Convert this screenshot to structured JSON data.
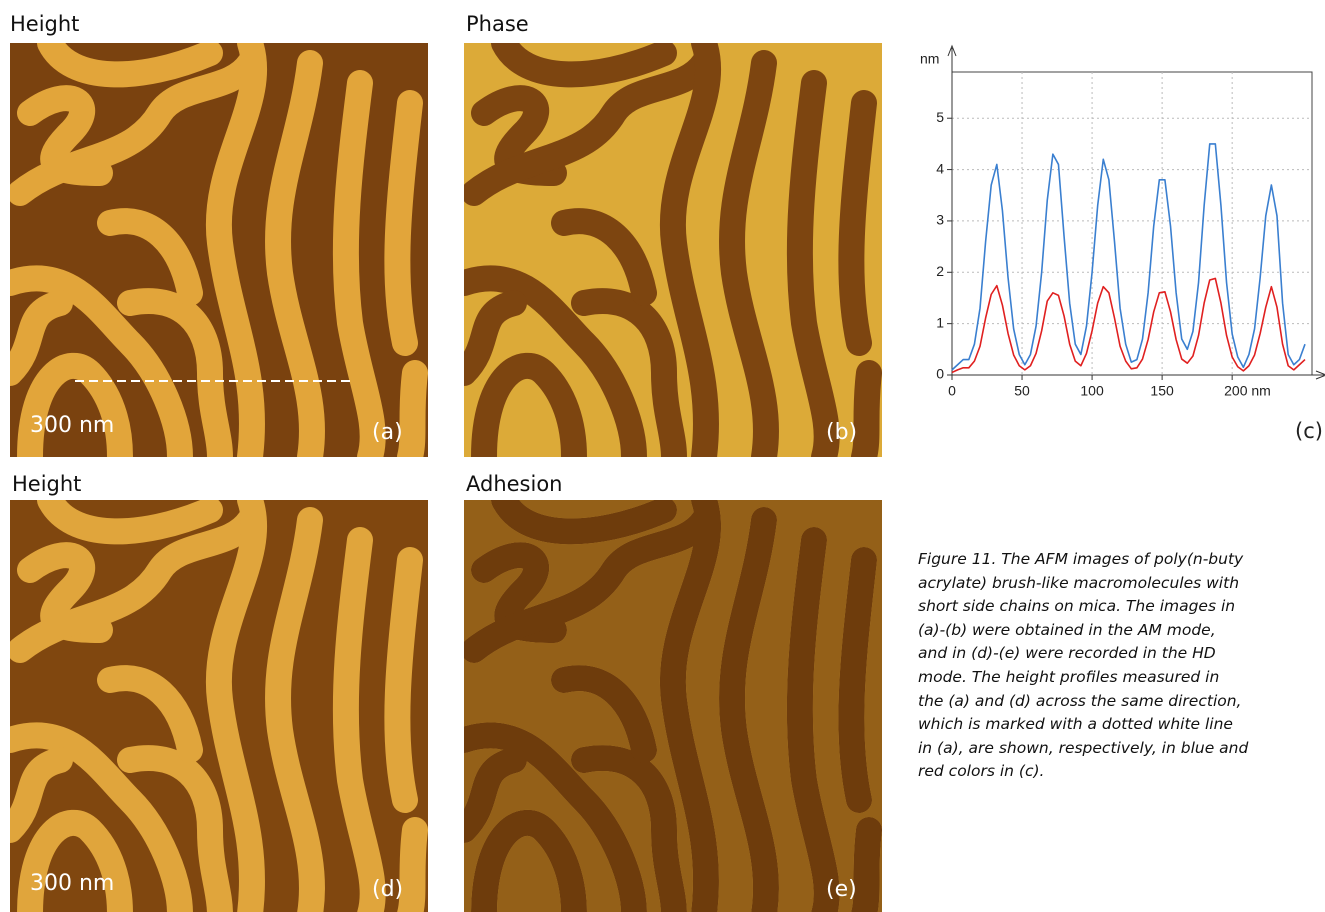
{
  "panels": [
    {
      "title": "Height",
      "scale": "300 nm",
      "letter": "(a)"
    },
    {
      "title": "Phase",
      "letter": "(b)"
    },
    {
      "title": "Height",
      "scale": "300 nm",
      "letter": "(d)"
    },
    {
      "title": "Adhesion",
      "letter": "(e)"
    }
  ],
  "chart_panel": "(c)",
  "chart_data": {
    "type": "line",
    "y_label": "nm",
    "x": [
      0,
      4,
      8,
      12,
      16,
      20,
      24,
      28,
      32,
      36,
      40,
      44,
      48,
      52,
      56,
      60,
      64,
      68,
      72,
      76,
      80,
      84,
      88,
      92,
      96,
      100,
      104,
      108,
      112,
      116,
      120,
      124,
      128,
      132,
      136,
      140,
      144,
      148,
      152,
      156,
      160,
      164,
      168,
      172,
      176,
      180,
      184,
      188,
      192,
      196,
      200,
      204,
      208,
      212,
      216,
      220,
      224,
      228,
      232,
      236,
      240,
      244,
      248,
      252
    ],
    "series": [
      {
        "color": "#3a7fd0",
        "values": [
          0.1,
          0.2,
          0.3,
          0.3,
          0.6,
          1.3,
          2.6,
          3.7,
          4.1,
          3.2,
          1.9,
          0.9,
          0.4,
          0.2,
          0.4,
          0.95,
          2.0,
          3.4,
          4.3,
          4.1,
          2.7,
          1.4,
          0.6,
          0.4,
          0.95,
          2.0,
          3.3,
          4.2,
          3.8,
          2.6,
          1.3,
          0.6,
          0.25,
          0.3,
          0.7,
          1.6,
          2.9,
          3.8,
          3.8,
          2.9,
          1.6,
          0.7,
          0.5,
          0.85,
          1.8,
          3.3,
          4.5,
          4.5,
          3.3,
          1.8,
          0.8,
          0.35,
          0.15,
          0.4,
          0.9,
          1.9,
          3.1,
          3.7,
          3.1,
          1.4,
          0.4,
          0.2,
          0.3,
          0.6
        ]
      },
      {
        "color": "#e02020",
        "values": [
          0.05,
          0.1,
          0.14,
          0.14,
          0.27,
          0.56,
          1.11,
          1.57,
          1.74,
          1.36,
          0.81,
          0.39,
          0.18,
          0.1,
          0.18,
          0.42,
          0.86,
          1.44,
          1.6,
          1.55,
          1.15,
          0.6,
          0.27,
          0.18,
          0.42,
          0.86,
          1.4,
          1.72,
          1.6,
          1.11,
          0.56,
          0.27,
          0.12,
          0.14,
          0.31,
          0.69,
          1.23,
          1.6,
          1.62,
          1.23,
          0.69,
          0.31,
          0.23,
          0.37,
          0.77,
          1.4,
          1.85,
          1.88,
          1.4,
          0.77,
          0.35,
          0.16,
          0.08,
          0.18,
          0.39,
          0.81,
          1.32,
          1.72,
          1.32,
          0.6,
          0.18,
          0.1,
          0.2,
          0.3
        ]
      }
    ],
    "xlim": [
      0,
      257
    ],
    "ylim": [
      0,
      5.9
    ],
    "xticks": [
      0,
      50,
      100,
      150,
      {
        "value": 200,
        "label": "200 nm"
      }
    ],
    "yticks": [
      0,
      1,
      2,
      3,
      4,
      5
    ],
    "grid": true
  },
  "caption": [
    "Figure 11. The AFM images of poly(n-buty",
    "acrylate) brush-like macromolecules with",
    "short side chains on mica. The images in",
    "(a)-(b) were obtained  in the AM mode,",
    "and in (d)-(e) were recorded in the HD",
    "mode. The height profiles measured in",
    "the (a) and (d) across the same direction,",
    "which is marked with a dotted white line",
    "in (a), are shown, respectively, in blue and",
    "red colors in (c)."
  ]
}
